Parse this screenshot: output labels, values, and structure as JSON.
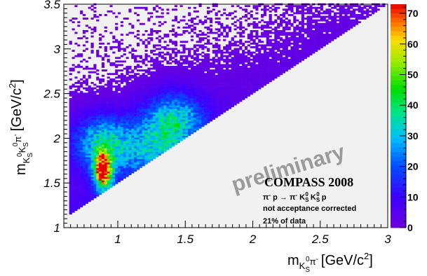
{
  "chart_data": {
    "type": "heatmap",
    "xaxis": {
      "ticks": [
        "1",
        "1.5",
        "2",
        "2.5",
        "3"
      ],
      "range": [
        0.6,
        3.0
      ]
    },
    "yaxis": {
      "ticks": [
        "1",
        "1.5",
        "2",
        "2.5",
        "3",
        "3.5"
      ],
      "range": [
        1.0,
        3.5
      ]
    },
    "zaxis": {
      "ticks": [
        "0",
        "10",
        "20",
        "30",
        "40",
        "50",
        "60",
        "70"
      ],
      "range": [
        0,
        73
      ]
    },
    "xlabel": {
      "main": "m",
      "sub": "K",
      "subsub": "S",
      "sup0": "0",
      "pi": "π",
      "sup_minus": "-",
      "unit_open": "[GeV/c",
      "unit_exp": "2",
      "unit_close": "]"
    },
    "ylabel": {
      "main": "m",
      "sub1": "K",
      "subsub1": "S",
      "sup1": "0",
      "sub2": "K",
      "subsub2": "S",
      "sup2": "0",
      "pi": "π",
      "sup_minus": "-",
      "unit_open": "[GeV/c",
      "unit_exp": "2",
      "unit_close": "]"
    },
    "watermark": "preliminary",
    "experiment": "COMPASS 2008",
    "reaction": {
      "pi1": "π",
      "m1": "-",
      "p1": " p → π",
      "m2": "-",
      "k1": " K",
      "k1s": "S",
      "k1z": "0",
      "k2": " K",
      "k2s": "S",
      "k2z": "0",
      "p2": " p"
    },
    "note1": "not acceptance corrected",
    "note2": "21% of data",
    "grid": false,
    "kinematic_boundary": {
      "x": [
        0.637,
        3.0
      ],
      "y": [
        1.137,
        3.5
      ]
    },
    "clusters": [
      {
        "x": 0.892,
        "y": 1.64,
        "peak": 73
      },
      {
        "x": 0.892,
        "y": 1.95,
        "peak": 30
      },
      {
        "x": 1.42,
        "y": 2.2,
        "peak": 30
      },
      {
        "x": 1.25,
        "y": 1.85,
        "peak": 20
      }
    ]
  }
}
